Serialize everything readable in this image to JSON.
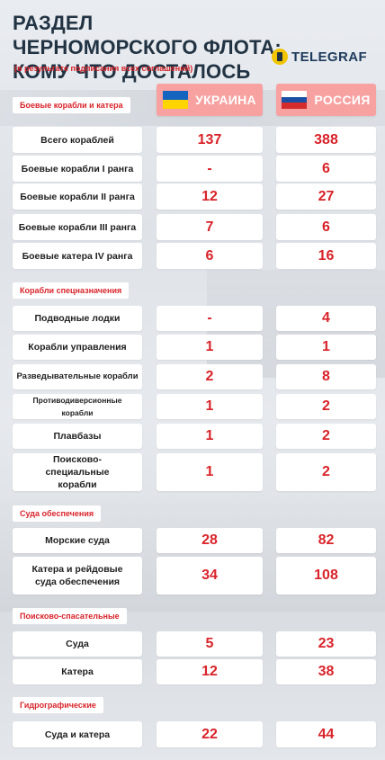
{
  "title_line1": "РАЗДЕЛ ЧЕРНОМОРСКОГО ФЛОТА:",
  "title_line2": "КОМУ ЧТО ДОСТАЛОСЬ",
  "subtitle": "(в результате подписания всех соглашений)",
  "brand": "TELEGRAF",
  "colors": {
    "accent": "#d9232a",
    "header_card": "#f7a1a1",
    "title": "#213343"
  },
  "columns": {
    "ukraine": {
      "label": "УКРАИНА",
      "flag": "ukraine-flag-icon",
      "flag_colors": [
        "#1565c0",
        "#ffd500"
      ]
    },
    "russia": {
      "label": "РОССИЯ",
      "flag": "russia-flag-icon",
      "flag_colors": [
        "#ffffff",
        "#1c4fa3",
        "#d62b2b"
      ]
    }
  },
  "sections": [
    {
      "label": "Боевые корабли и катера"
    },
    {
      "label": "Корабли спецназначения"
    },
    {
      "label": "Суда обеспечения"
    },
    {
      "label": "Поисково-спасательные"
    },
    {
      "label": "Гидрографические"
    }
  ],
  "rows": [
    {
      "label": "Всего кораблей",
      "ukraine": "137",
      "russia": "388"
    },
    {
      "label": "Боевые корабли I ранга",
      "ukraine": "-",
      "russia": "6"
    },
    {
      "label": "Боевые корабли II ранга",
      "ukraine": "12",
      "russia": "27"
    },
    {
      "label": "Боевые корабли III ранга",
      "ukraine": "7",
      "russia": "6"
    },
    {
      "label": "Боевые катера IV ранга",
      "ukraine": "6",
      "russia": "16"
    },
    {
      "label": "Подводные лодки",
      "ukraine": "-",
      "russia": "4"
    },
    {
      "label": "Корабли управления",
      "ukraine": "1",
      "russia": "1"
    },
    {
      "label": "Разведывательные корабли",
      "ukraine": "2",
      "russia": "8"
    },
    {
      "label": "Противодиверсионные корабли",
      "ukraine": "1",
      "russia": "2"
    },
    {
      "label": "Плавбазы",
      "ukraine": "1",
      "russia": "2"
    },
    {
      "label": "Поисково-специальные корабли",
      "ukraine": "1",
      "russia": "2"
    },
    {
      "label": "Морские суда",
      "ukraine": "28",
      "russia": "82"
    },
    {
      "label": "Катера и рейдовые суда обеспечения",
      "ukraine": "34",
      "russia": "108"
    },
    {
      "label": "Суда",
      "ukraine": "5",
      "russia": "23"
    },
    {
      "label": "Катера",
      "ukraine": "12",
      "russia": "38"
    },
    {
      "label": "Суда и катера",
      "ukraine": "22",
      "russia": "44"
    }
  ]
}
